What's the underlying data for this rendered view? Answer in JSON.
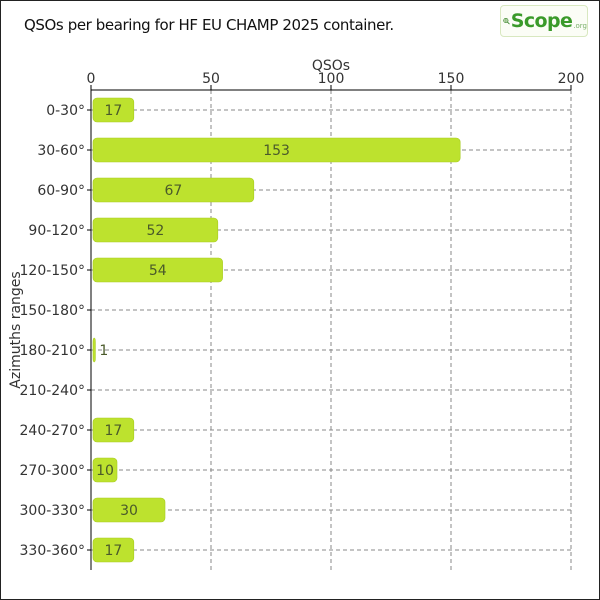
{
  "title": "QSOs per bearing for HF EU CHAMP 2025 container.",
  "logo": {
    "word": "Scope",
    "sub": ".org"
  },
  "colors": {
    "bar": "#bde22e",
    "grid": "#888888",
    "axis": "#000000",
    "text": "#333333"
  },
  "chart_data": {
    "type": "bar",
    "orientation": "horizontal",
    "xlabel": "QSOs",
    "ylabel": "Azimuths ranges",
    "xlim": [
      0,
      200
    ],
    "xticks": [
      0,
      50,
      100,
      150,
      200
    ],
    "xaxis_position": "top",
    "grid": true,
    "categories": [
      "0-30°",
      "30-60°",
      "60-90°",
      "90-120°",
      "120-150°",
      "150-180°",
      "180-210°",
      "210-240°",
      "240-270°",
      "270-300°",
      "300-330°",
      "330-360°"
    ],
    "values": [
      17,
      153,
      67,
      52,
      54,
      0,
      1,
      0,
      17,
      10,
      30,
      17
    ],
    "data_labels": [
      "17",
      "153",
      "67",
      "52",
      "54",
      "",
      "1",
      "",
      "17",
      "10",
      "30",
      "17"
    ]
  }
}
